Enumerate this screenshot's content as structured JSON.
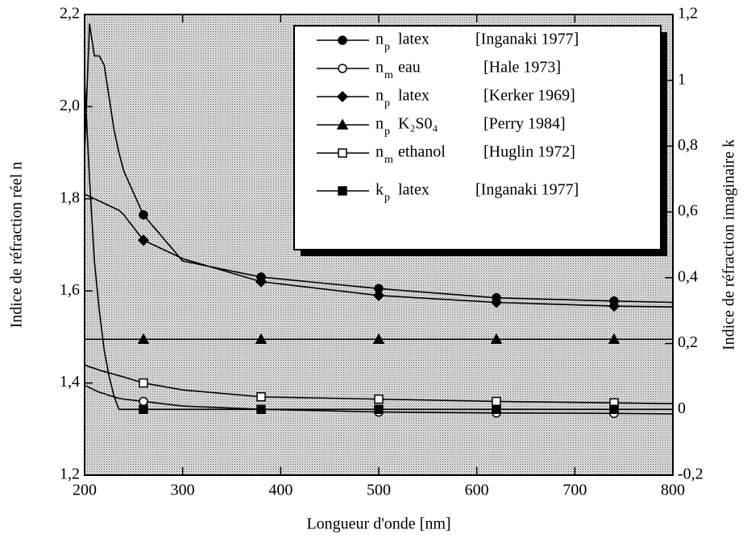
{
  "chart_data": {
    "type": "line",
    "xlabel": "Longueur d'onde [nm]",
    "ylabel": "Indice de réfraction réel  n",
    "y2label": "Indice de réfraction imaginaire  k",
    "x": [
      200,
      205,
      210,
      215,
      220,
      225,
      230,
      235,
      240,
      260,
      300,
      380,
      500,
      620,
      740,
      800
    ],
    "markers_x": [
      260,
      380,
      500,
      620,
      740
    ],
    "xlim": [
      200,
      800
    ],
    "xticks": [
      200,
      300,
      400,
      500,
      600,
      700,
      800
    ],
    "ylim": [
      1.2,
      2.2
    ],
    "yticks": [
      {
        "value": 1.2,
        "label": "1,2"
      },
      {
        "value": 1.4,
        "label": "1,4"
      },
      {
        "value": 1.6,
        "label": "1,6"
      },
      {
        "value": 1.8,
        "label": "1,8"
      },
      {
        "value": 2.0,
        "label": "2,0"
      },
      {
        "value": 2.2,
        "label": "2,2"
      }
    ],
    "y2lim": [
      -0.2,
      1.2
    ],
    "y2ticks": [
      {
        "value": -0.2,
        "label": "-0,2"
      },
      0,
      {
        "value": 0.2,
        "label": "0,2"
      },
      {
        "value": 0.4,
        "label": "0,4"
      },
      {
        "value": 0.6,
        "label": "0,6"
      },
      {
        "value": 0.8,
        "label": "0,8"
      },
      1,
      {
        "value": 1.2,
        "label": "1,2"
      }
    ],
    "legend": "upper right",
    "series": [
      {
        "symbol": "n",
        "subscript": "p",
        "name": "latex",
        "ref": "[Inganaki 1977]",
        "marker": "circle",
        "filled": true,
        "color": "#000",
        "values": [
          1.9,
          2.18,
          2.11,
          2.11,
          2.09,
          2.02,
          1.95,
          1.9,
          1.86,
          1.765,
          1.665,
          1.63,
          1.605,
          1.585,
          1.578,
          1.575
        ]
      },
      {
        "symbol": "n",
        "subscript": "m",
        "name": "eau",
        "ref": "[Hale 1973]",
        "marker": "circle",
        "filled": false,
        "color": "#000",
        "values": [
          1.395,
          1.39,
          1.385,
          1.38,
          1.377,
          1.373,
          1.37,
          1.367,
          1.365,
          1.36,
          1.35,
          1.343,
          1.337,
          1.335,
          1.334,
          1.333
        ]
      },
      {
        "symbol": "n",
        "subscript": "p",
        "name": "latex",
        "ref": "[Kerker 1969]",
        "marker": "diamond",
        "filled": true,
        "color": "#000",
        "values": [
          1.81,
          1.805,
          1.8,
          1.795,
          1.79,
          1.785,
          1.78,
          1.775,
          1.765,
          1.71,
          1.67,
          1.62,
          1.59,
          1.575,
          1.567,
          1.565
        ]
      },
      {
        "symbol": "n",
        "subscript": "p",
        "name": "K₂S0₄",
        "ref": "[Perry 1984]",
        "marker": "triangle",
        "filled": true,
        "color": "#000",
        "values": [
          1.495,
          1.495,
          1.495,
          1.495,
          1.495,
          1.495,
          1.495,
          1.495,
          1.495,
          1.495,
          1.495,
          1.495,
          1.495,
          1.495,
          1.495,
          1.495
        ]
      },
      {
        "symbol": "n",
        "subscript": "m",
        "name": "ethanol",
        "ref": "[Huglin 1972]",
        "marker": "square",
        "filled": false,
        "color": "#000",
        "values": [
          1.44,
          1.435,
          1.432,
          1.428,
          1.425,
          1.422,
          1.419,
          1.416,
          1.413,
          1.4,
          1.385,
          1.37,
          1.365,
          1.36,
          1.357,
          1.355
        ]
      },
      {
        "symbol": "k",
        "subscript": "p",
        "name": "latex",
        "ref": "[Inganaki 1977]",
        "marker": "square",
        "filled": true,
        "color": "#000",
        "axis": "y2",
        "values": [
          1.0,
          0.7,
          0.45,
          0.3,
          0.18,
          0.1,
          0.04,
          0.0,
          0.0,
          0.0,
          0.0,
          0.0,
          0.0,
          0.0,
          0.0,
          0.0
        ]
      }
    ]
  }
}
